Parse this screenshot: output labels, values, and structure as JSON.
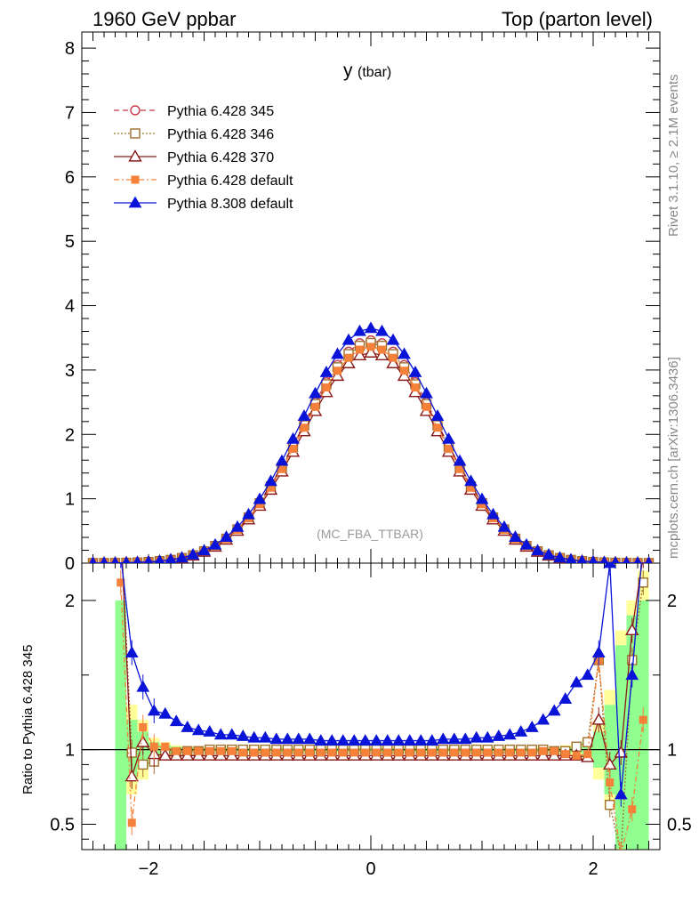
{
  "header": {
    "left_title": "1960 GeV ppbar",
    "right_title": "Top (parton level)"
  },
  "side_labels": {
    "rivet": "Rivet 3.1.10, ≥ 2.1M events",
    "mcplots": "mcplots.cern.ch [arXiv:1306.3436]"
  },
  "chart_data": [
    {
      "type": "line",
      "title": "y (tbar)",
      "title_main": "y",
      "title_sub": "(tbar)",
      "annotation": "(MC_FBA_TTBAR)",
      "xlim": [
        -2.6,
        2.6
      ],
      "ylim": [
        0,
        8.25
      ],
      "yticks": [
        0,
        1,
        2,
        3,
        4,
        5,
        6,
        7,
        8
      ],
      "x": [
        -2.5,
        -2.4,
        -2.3,
        -2.2,
        -2.1,
        -2.0,
        -1.9,
        -1.8,
        -1.7,
        -1.6,
        -1.5,
        -1.4,
        -1.3,
        -1.2,
        -1.1,
        -1.0,
        -0.9,
        -0.8,
        -0.7,
        -0.6,
        -0.5,
        -0.4,
        -0.3,
        -0.2,
        -0.1,
        0.0,
        0.1,
        0.2,
        0.3,
        0.4,
        0.5,
        0.6,
        0.7,
        0.8,
        0.9,
        1.0,
        1.1,
        1.2,
        1.3,
        1.4,
        1.5,
        1.6,
        1.7,
        1.8,
        1.9,
        2.0,
        2.1,
        2.2,
        2.3,
        2.4,
        2.5
      ],
      "legend": [
        {
          "label": "Pythia 6.428 345",
          "color": "#c8384b",
          "marker": "circle-open",
          "dash": "6,4"
        },
        {
          "label": "Pythia 6.428 346",
          "color": "#a0702d",
          "marker": "square-open",
          "dash": "2,2"
        },
        {
          "label": "Pythia 6.428 370",
          "color": "#8b1a1a",
          "marker": "triangle-open",
          "dash": ""
        },
        {
          "label": "Pythia 6.428 default",
          "color": "#f5813a",
          "marker": "square-filled",
          "dash": "6,3,2,3"
        },
        {
          "label": "Pythia 8.308 default",
          "color": "#0a14d8",
          "marker": "triangle-filled",
          "dash": ""
        }
      ],
      "series": [
        {
          "name": "Pythia 6.428 345",
          "peak": 3.46
        },
        {
          "name": "Pythia 6.428 346",
          "peak": 3.42
        },
        {
          "name": "Pythia 6.428 370",
          "peak": 3.27
        },
        {
          "name": "Pythia 6.428 default",
          "peak": 3.36
        },
        {
          "name": "Pythia 8.308 default",
          "peak": 3.65
        }
      ],
      "peak_shape": "gaussian-like, sigma ≈ 0.62"
    },
    {
      "type": "line",
      "ylabel": "Ratio to Pythia 6.428 345",
      "ylim": [
        0.33,
        2.25
      ],
      "yticks": [
        0.5,
        1,
        2
      ],
      "xticks": [
        -2,
        0,
        2
      ],
      "reference_line": 1.0,
      "x": [
        -2.25,
        -2.15,
        -2.05,
        -1.95,
        -1.85,
        -1.75,
        -1.65,
        -1.55,
        -1.45,
        -1.35,
        -1.25,
        -1.15,
        -1.05,
        -0.95,
        -0.85,
        -0.75,
        -0.65,
        -0.55,
        -0.45,
        -0.35,
        -0.25,
        -0.15,
        -0.05,
        0.05,
        0.15,
        0.25,
        0.35,
        0.45,
        0.55,
        0.65,
        0.75,
        0.85,
        0.95,
        1.05,
        1.15,
        1.25,
        1.35,
        1.45,
        1.55,
        1.65,
        1.75,
        1.85,
        1.95,
        2.05,
        2.15,
        2.25,
        2.35,
        2.45
      ],
      "series": [
        {
          "name": "Pythia 6.428 346",
          "values": [
            2.5,
            0.98,
            0.9,
            0.92,
            0.97,
            0.98,
            0.99,
            0.99,
            1.0,
            1.0,
            1.0,
            1.0,
            1.0,
            1.0,
            1.0,
            1.0,
            1.0,
            1.0,
            1.0,
            1.0,
            1.0,
            1.0,
            1.0,
            1.0,
            1.0,
            1.0,
            1.0,
            1.0,
            1.0,
            1.0,
            1.0,
            1.0,
            1.0,
            1.0,
            1.0,
            1.0,
            1.0,
            1.0,
            1.0,
            0.99,
            0.99,
            1.02,
            1.05,
            1.6,
            0.63,
            0.3,
            1.6,
            2.12
          ]
        },
        {
          "name": "Pythia 6.428 370",
          "values": [
            2.5,
            0.82,
            1.05,
            0.97,
            0.96,
            0.96,
            0.96,
            0.96,
            0.96,
            0.96,
            0.96,
            0.96,
            0.96,
            0.96,
            0.96,
            0.96,
            0.96,
            0.96,
            0.96,
            0.96,
            0.96,
            0.96,
            0.96,
            0.96,
            0.96,
            0.96,
            0.96,
            0.96,
            0.96,
            0.96,
            0.96,
            0.96,
            0.96,
            0.96,
            0.96,
            0.96,
            0.96,
            0.96,
            0.96,
            0.96,
            0.96,
            0.96,
            0.95,
            1.2,
            0.9,
            0.98,
            1.8,
            2.3
          ]
        },
        {
          "name": "Pythia 6.428 default",
          "values": [
            2.12,
            0.51,
            1.15,
            1.02,
            1.02,
            0.99,
            0.99,
            0.99,
            0.99,
            0.99,
            0.99,
            0.98,
            0.98,
            0.98,
            0.98,
            0.98,
            0.98,
            0.98,
            0.98,
            0.98,
            0.98,
            0.98,
            0.98,
            0.98,
            0.98,
            0.98,
            0.98,
            0.98,
            0.98,
            0.98,
            0.98,
            0.98,
            0.98,
            0.98,
            0.98,
            0.98,
            0.98,
            0.98,
            0.99,
            0.99,
            0.97,
            0.96,
            0.97,
            1.6,
            0.78,
            0.3,
            0.6,
            1.2
          ]
        },
        {
          "name": "Pythia 8.308 default",
          "values": [
            2.3,
            1.65,
            1.42,
            1.26,
            1.24,
            1.19,
            1.15,
            1.13,
            1.12,
            1.1,
            1.1,
            1.09,
            1.08,
            1.08,
            1.07,
            1.07,
            1.07,
            1.07,
            1.06,
            1.06,
            1.06,
            1.06,
            1.06,
            1.06,
            1.06,
            1.06,
            1.06,
            1.06,
            1.06,
            1.07,
            1.07,
            1.07,
            1.08,
            1.08,
            1.09,
            1.1,
            1.12,
            1.15,
            1.2,
            1.26,
            1.34,
            1.45,
            1.5,
            1.65,
            2.25,
            0.7,
            1.5,
            2.4
          ]
        }
      ],
      "bands": {
        "yellow_color": "#ffff99",
        "green_color": "#90ff90",
        "yellow_half_width": [
          0.3,
          0.3,
          0.2,
          0.08,
          0.05,
          0.03,
          0.02,
          0.02,
          0.02,
          0.02,
          0.02,
          0.02,
          0.02,
          0.02,
          0.02,
          0.02,
          0.02,
          0.02,
          0.02,
          0.02,
          0.02,
          0.02,
          0.02,
          0.02,
          0.02,
          0.02,
          0.02,
          0.02,
          0.02,
          0.02,
          0.02,
          0.02,
          0.02,
          0.02,
          0.02,
          0.02,
          0.02,
          0.02,
          0.02,
          0.02,
          0.03,
          0.04,
          0.08,
          0.2,
          0.4,
          0.8,
          1.0,
          1.2
        ],
        "green_half_width": [
          1.0,
          0.2,
          0.12,
          0.05,
          0.03,
          0.02,
          0.015,
          0.012,
          0.01,
          0.01,
          0.01,
          0.01,
          0.01,
          0.01,
          0.01,
          0.01,
          0.01,
          0.01,
          0.01,
          0.01,
          0.01,
          0.01,
          0.01,
          0.01,
          0.01,
          0.01,
          0.01,
          0.01,
          0.01,
          0.01,
          0.01,
          0.01,
          0.01,
          0.01,
          0.01,
          0.01,
          0.01,
          0.01,
          0.01,
          0.01,
          0.015,
          0.02,
          0.05,
          0.12,
          0.3,
          0.7,
          0.9,
          1.0
        ]
      }
    }
  ]
}
